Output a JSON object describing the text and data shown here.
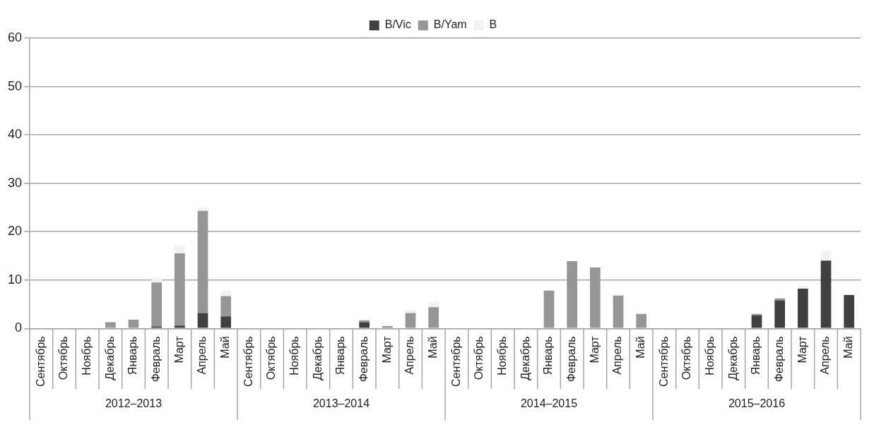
{
  "chart_data": {
    "type": "bar",
    "stacked": true,
    "categories": [
      "Сентябрь",
      "Октябрь",
      "Ноябрь",
      "Декабрь",
      "Январь",
      "Февраль",
      "Март",
      "Апрель",
      "Май",
      "Сентябрь",
      "Октябрь",
      "Ноябрь",
      "Декабрь",
      "Январь",
      "Февраль",
      "Март",
      "Апрель",
      "Май",
      "Сентябрь",
      "Октябрь",
      "Ноябрь",
      "Декабрь",
      "Январь",
      "Февраль",
      "Март",
      "Апрель",
      "Май",
      "Сентябрь",
      "Октябрь",
      "Ноябрь",
      "Декабрь",
      "Январь",
      "Февраль",
      "Март",
      "Апрель",
      "Май"
    ],
    "series": [
      {
        "name": "B/Vic",
        "color": "#404040",
        "values": [
          0,
          0,
          0,
          0,
          0,
          0.4,
          0.6,
          3.2,
          2.5,
          0,
          0,
          0,
          0,
          0,
          1.3,
          0,
          0,
          0,
          0,
          0,
          0,
          0,
          0,
          0,
          0,
          0,
          0,
          0,
          0,
          0,
          0,
          2.7,
          5.8,
          8.2,
          14,
          6.9
        ]
      },
      {
        "name": "B/Yam",
        "color": "#969696",
        "values": [
          0,
          0,
          0,
          1.3,
          1.8,
          9.1,
          14.9,
          21.1,
          4.2,
          0,
          0,
          0,
          0,
          0,
          0.4,
          0.5,
          3.2,
          4.4,
          0,
          0,
          0,
          0,
          7.8,
          13.9,
          12.6,
          6.8,
          3,
          0,
          0,
          0,
          0,
          0.3,
          0.4,
          0,
          0,
          0
        ]
      },
      {
        "name": "B",
        "color": "#f2f2f2",
        "values": [
          0,
          0,
          0,
          0,
          0,
          1,
          1.7,
          0.7,
          1.1,
          0,
          0,
          0,
          0,
          0,
          0,
          0,
          0.6,
          1,
          0,
          0,
          0,
          0,
          0,
          0,
          0,
          0,
          0,
          0,
          0,
          0,
          0,
          0,
          0,
          0.6,
          2,
          0
        ]
      }
    ],
    "ylim": [
      0,
      60
    ],
    "yticks": [
      0,
      10,
      20,
      30,
      40,
      50,
      60
    ],
    "grid": "y",
    "legend": "top",
    "annotations": [
      "2012–2013",
      "2013–2014",
      "2014–2015",
      "2015–2016"
    ]
  }
}
